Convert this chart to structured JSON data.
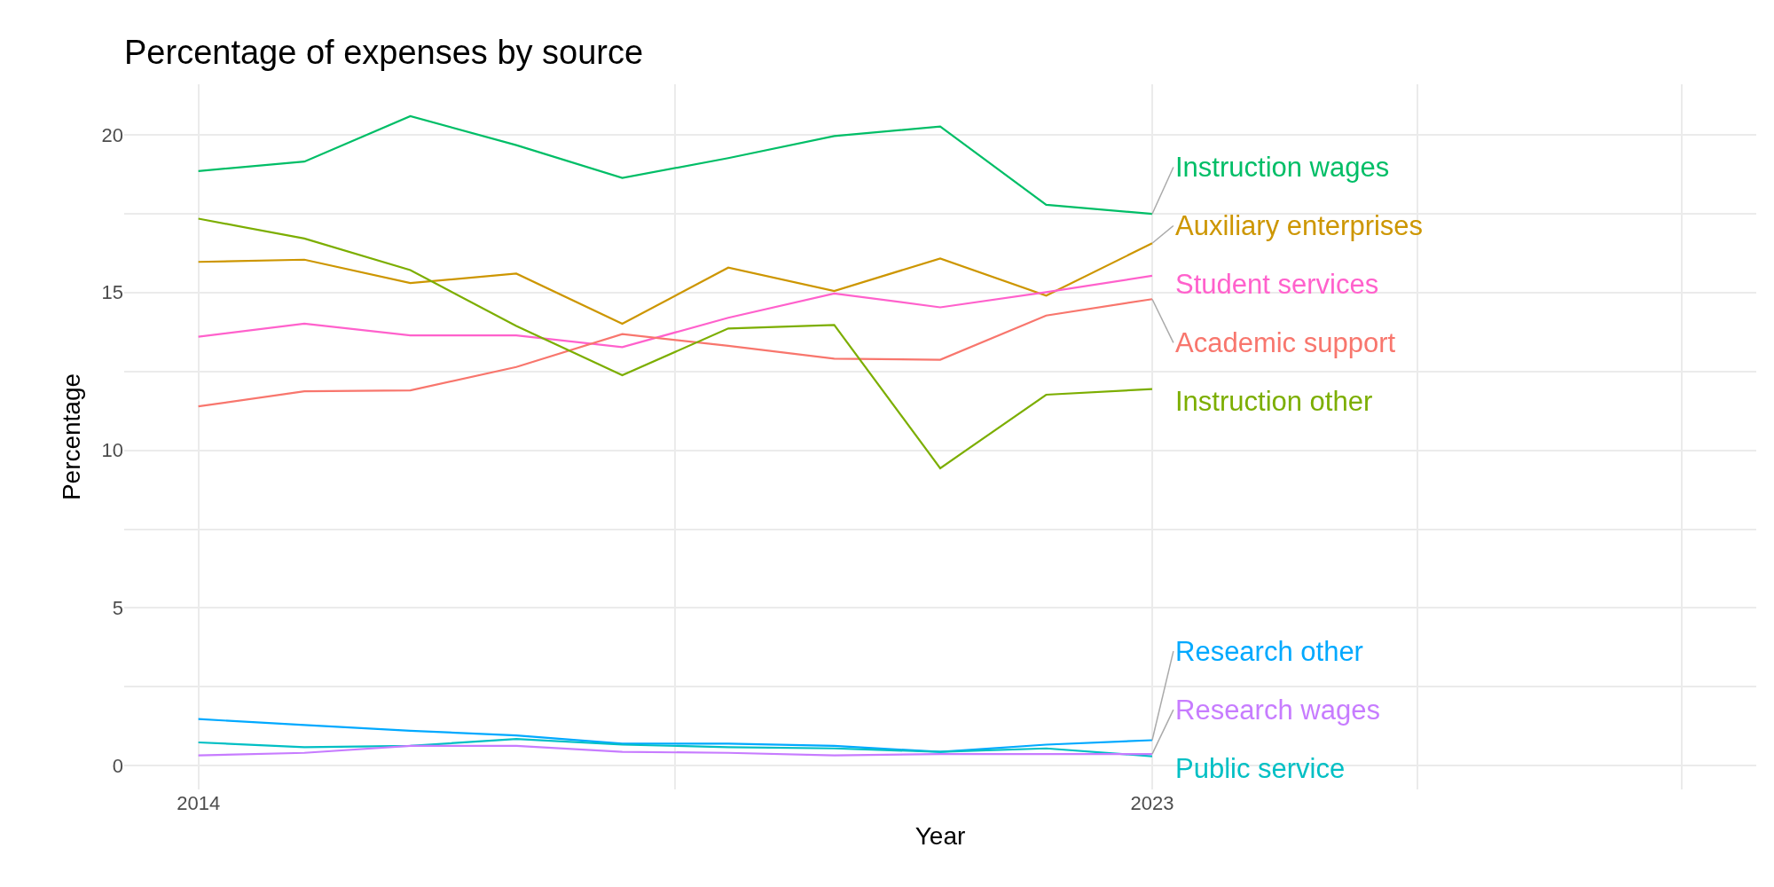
{
  "chart_data": {
    "type": "line",
    "title": "Percentage of expenses by source",
    "xlabel": "Year",
    "ylabel": "Percentage",
    "x": [
      2014,
      2015,
      2016,
      2017,
      2018,
      2019,
      2020,
      2021,
      2022,
      2023
    ],
    "series": [
      {
        "name": "Instruction wages",
        "color": "#00be67",
        "values": [
          18.85,
          19.15,
          20.59,
          19.67,
          18.63,
          19.26,
          19.96,
          20.26,
          17.78,
          17.49
        ]
      },
      {
        "name": "Auxiliary enterprises",
        "color": "#cd9600",
        "values": [
          15.97,
          16.04,
          15.3,
          15.6,
          14.01,
          15.79,
          15.05,
          16.08,
          14.9,
          16.56
        ]
      },
      {
        "name": "Student services",
        "color": "#ff61cc",
        "values": [
          13.6,
          14.01,
          13.64,
          13.64,
          13.27,
          14.2,
          14.97,
          14.53,
          15.01,
          15.53
        ]
      },
      {
        "name": "Academic support",
        "color": "#f8766d",
        "values": [
          11.39,
          11.87,
          11.9,
          12.64,
          13.68,
          13.31,
          12.9,
          12.87,
          14.27,
          14.79
        ]
      },
      {
        "name": "Instruction other",
        "color": "#7cae00",
        "values": [
          17.34,
          16.71,
          15.71,
          13.94,
          12.38,
          13.86,
          13.97,
          9.43,
          11.76,
          11.94
        ]
      },
      {
        "name": "Research other",
        "color": "#00a9ff",
        "values": [
          1.48,
          1.29,
          1.11,
          0.96,
          0.7,
          0.7,
          0.63,
          0.44,
          0.67,
          0.81
        ]
      },
      {
        "name": "Public service",
        "color": "#00bfc4",
        "values": [
          0.74,
          0.59,
          0.63,
          0.85,
          0.67,
          0.59,
          0.55,
          0.44,
          0.55,
          0.3
        ]
      },
      {
        "name": "Research wages",
        "color": "#c77cff",
        "values": [
          0.33,
          0.41,
          0.63,
          0.63,
          0.44,
          0.41,
          0.33,
          0.37,
          0.37,
          0.37
        ]
      }
    ],
    "xlim": [
      2013.3,
      2028.7
    ],
    "xticks": [
      2014,
      {
        "value": 2018.5,
        "label": null
      },
      2023,
      {
        "value": 2025.5,
        "label": null
      },
      {
        "value": 2028,
        "label": null
      }
    ],
    "ylim": [
      -0.75,
      21.6
    ],
    "yticks": [
      0,
      {
        "value": 2.5,
        "label": null
      },
      5,
      {
        "value": 7.5,
        "label": null
      },
      10,
      {
        "value": 12.5,
        "label": null
      },
      15,
      {
        "value": 17.5,
        "label": null
      },
      20
    ],
    "grid": true,
    "legend": false,
    "marker": "none",
    "line_style": "solid"
  }
}
